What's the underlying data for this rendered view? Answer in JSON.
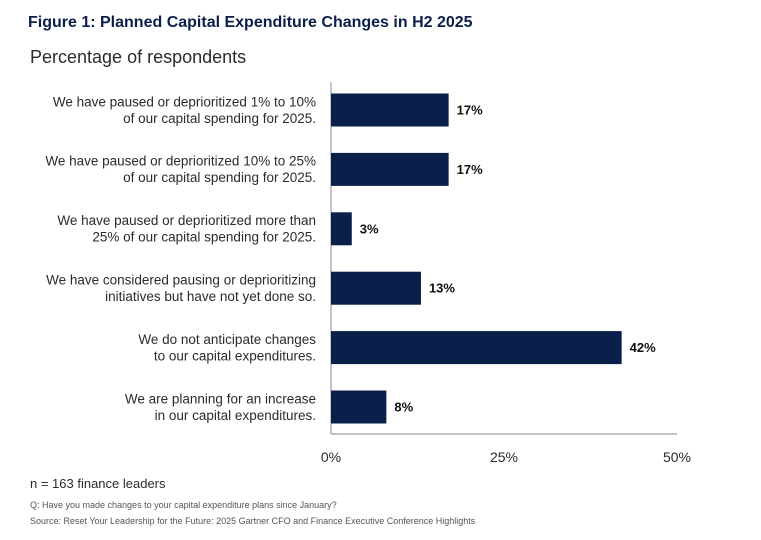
{
  "figure": {
    "title": "Figure 1: Planned Capital Expenditure Changes in H2 2025",
    "subtitle": "Percentage of respondents"
  },
  "notes": {
    "sample": "n = 163 finance leaders",
    "question": "Q: Have you made changes to your capital expenditure plans since January?",
    "source": "Source: Reset Your Leadership for the Future: 2025 Gartner CFO and Finance Executive Conference Highlights"
  },
  "colors": {
    "bar": "#0b1f4b",
    "title": "#0b1f4b",
    "axis": "#888888"
  },
  "chart_data": {
    "type": "bar",
    "orientation": "horizontal",
    "title": "Planned Capital Expenditure Changes in H2 2025",
    "ylabel": "",
    "xlabel": "Percentage of respondents",
    "xlim": [
      0,
      50
    ],
    "ticks": [
      0,
      25,
      50
    ],
    "tick_labels": [
      "0%",
      "25%",
      "50%"
    ],
    "grid": false,
    "categories": [
      [
        "We have paused or deprioritized 1% to 10%",
        "of our capital spending for 2025."
      ],
      [
        "We have paused or deprioritized 10% to 25%",
        "of our capital spending for 2025."
      ],
      [
        "We have paused or deprioritized more than",
        "25% of our capital spending for 2025."
      ],
      [
        "We have considered pausing or deprioritizing",
        "initiatives but have not yet done so."
      ],
      [
        "We do not anticipate changes",
        "to our capital expenditures."
      ],
      [
        "We are planning for an increase",
        "in our capital expenditures."
      ]
    ],
    "values": [
      17,
      17,
      3,
      13,
      42,
      8
    ],
    "value_labels": [
      "17%",
      "17%",
      "3%",
      "13%",
      "42%",
      "8%"
    ]
  }
}
